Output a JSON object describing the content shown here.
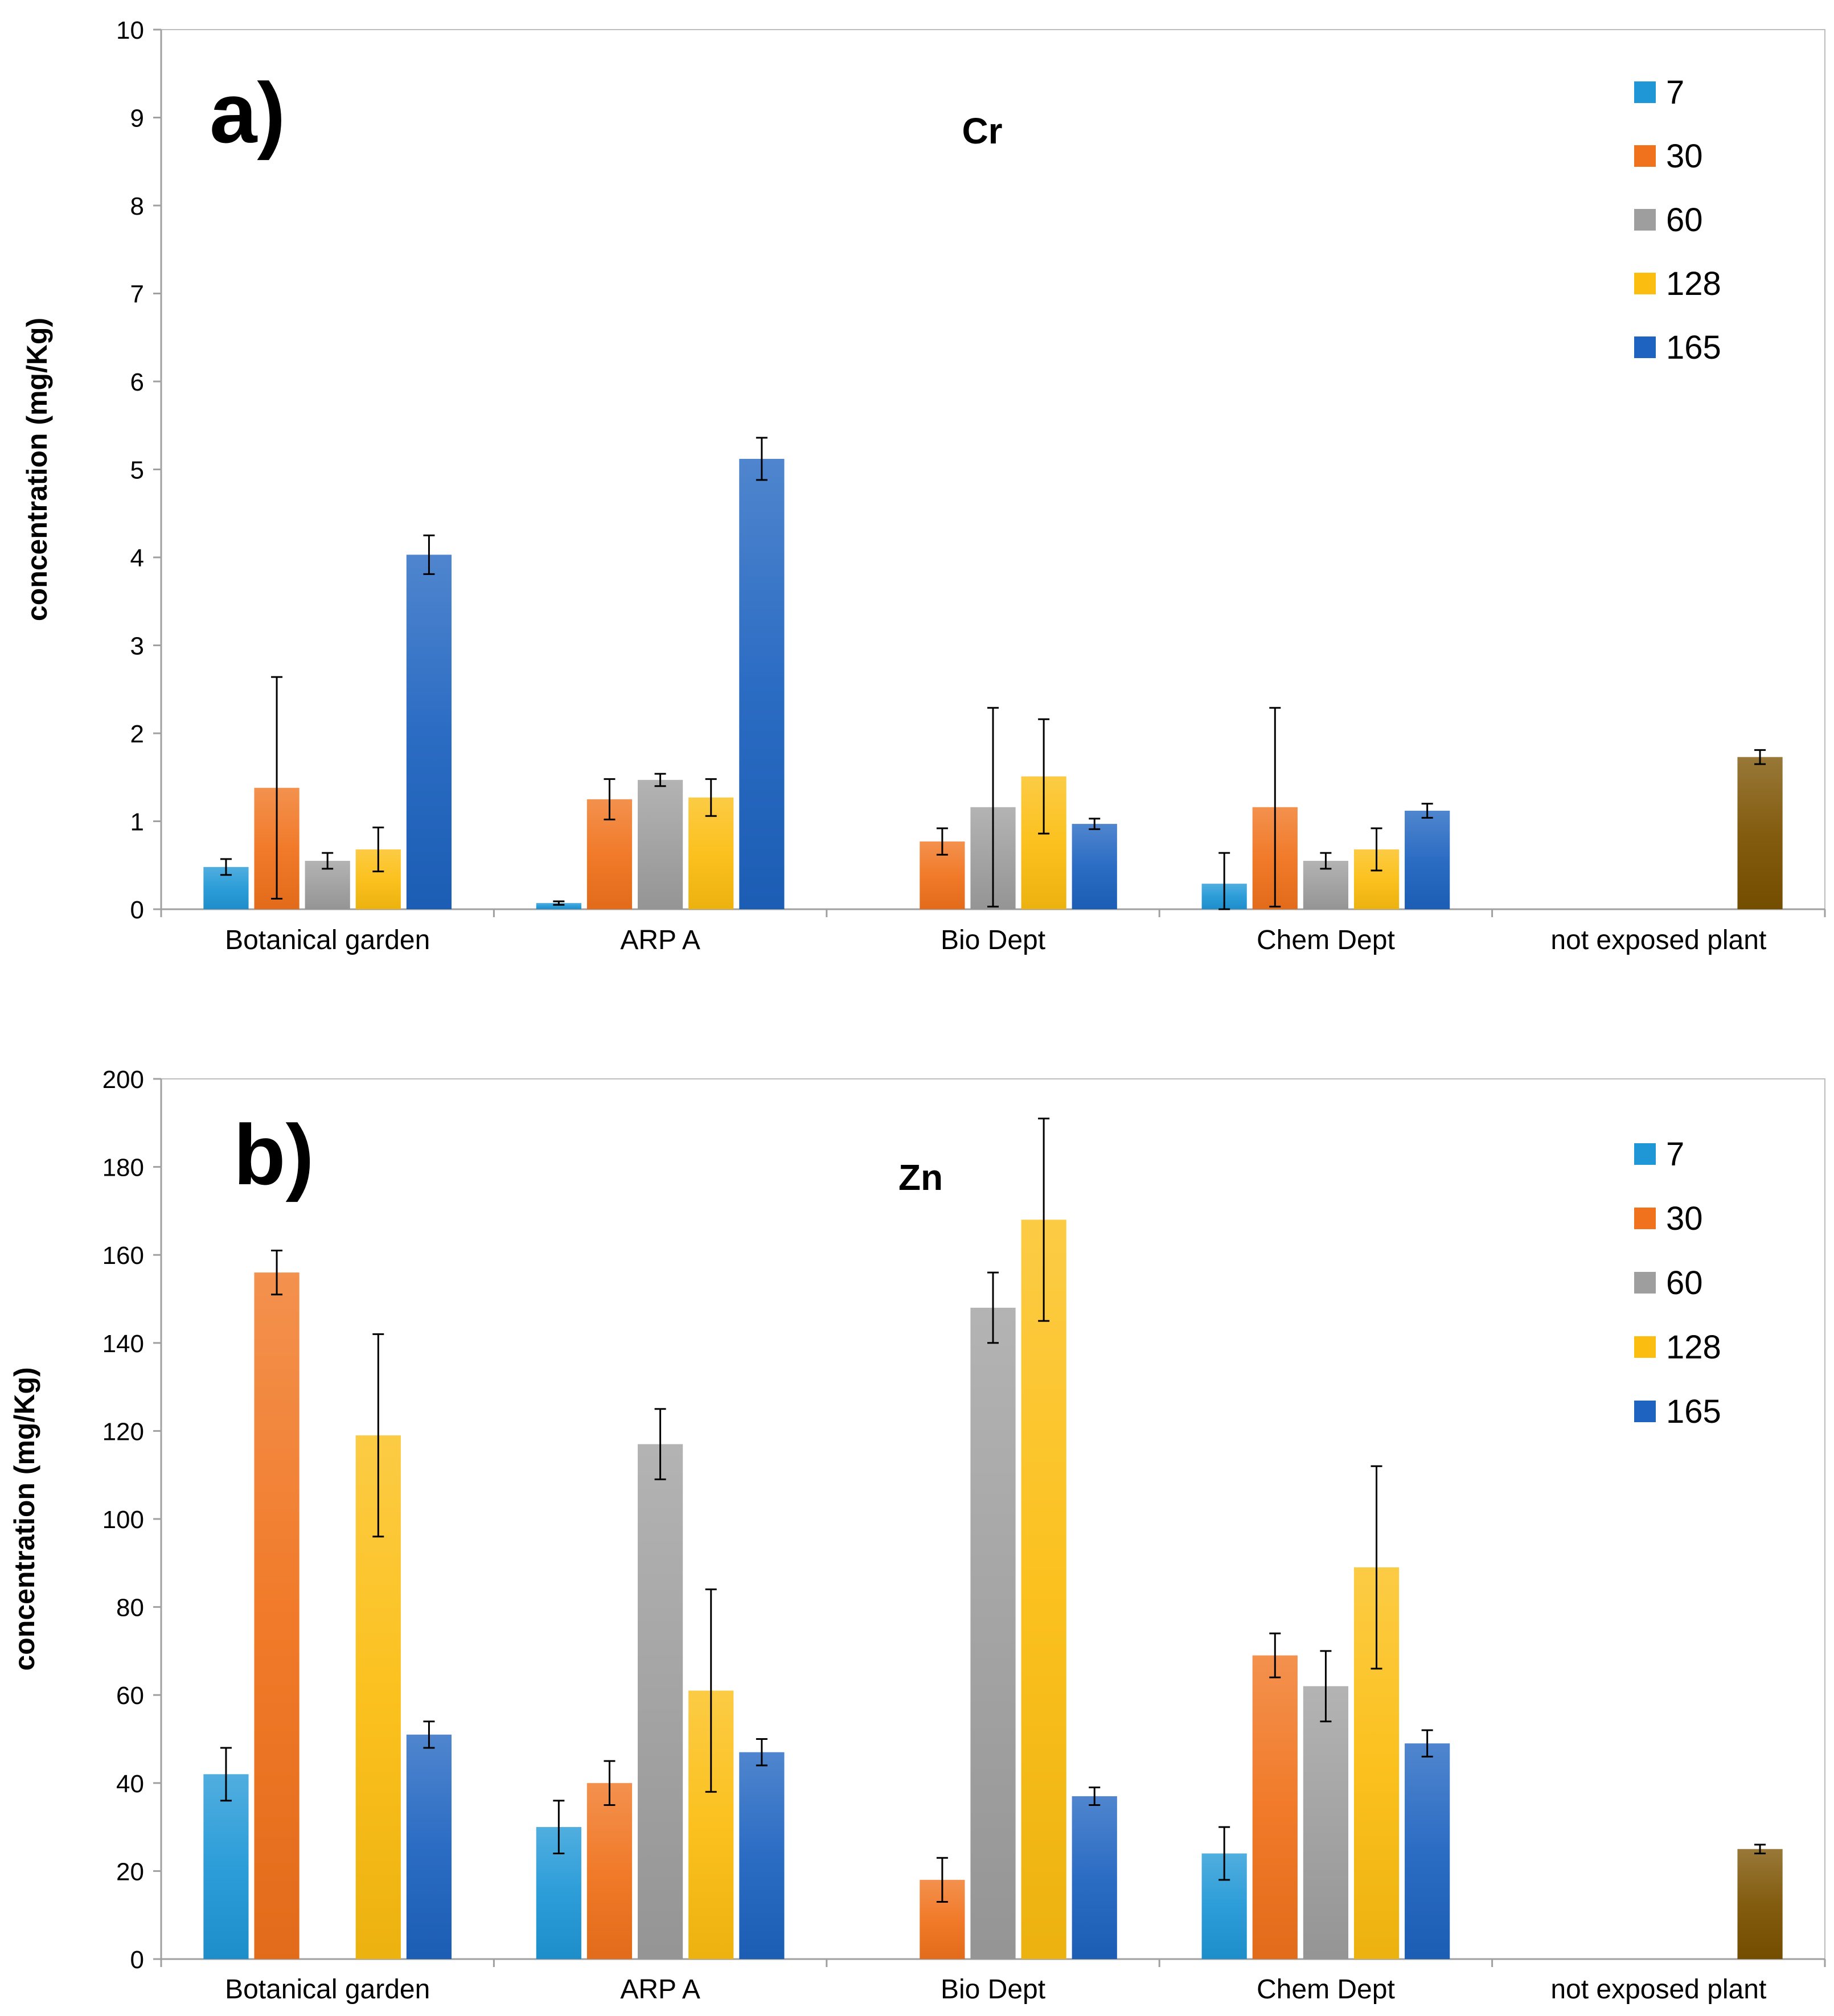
{
  "chart_data": [
    {
      "type": "bar",
      "panel_label": "a)",
      "title": "Cr",
      "xlabel": "",
      "ylabel": "concentration (mg/Kg)",
      "ylim": [
        0,
        10
      ],
      "yticks": [
        0,
        1,
        2,
        3,
        4,
        5,
        6,
        7,
        8,
        9,
        10
      ],
      "categories": [
        "Botanical garden",
        "ARP A",
        "Bio Dept",
        "Chem Dept",
        "not exposed plant"
      ],
      "legend_position": "top-right",
      "series": [
        {
          "name": "7",
          "color": "#1f97d6",
          "values": [
            0.48,
            0.07,
            null,
            0.29,
            null
          ],
          "errors": [
            0.09,
            0.02,
            null,
            0.35,
            null
          ]
        },
        {
          "name": "30",
          "color": "#f0721c",
          "values": [
            1.38,
            1.25,
            0.77,
            1.16,
            null
          ],
          "errors": [
            1.26,
            0.23,
            0.15,
            1.13,
            null
          ]
        },
        {
          "name": "60",
          "color": "#9e9e9e",
          "values": [
            0.55,
            1.47,
            1.16,
            0.55,
            null
          ],
          "errors": [
            0.09,
            0.07,
            1.13,
            0.09,
            null
          ]
        },
        {
          "name": "128",
          "color": "#fbbd10",
          "values": [
            0.68,
            1.27,
            1.51,
            0.68,
            null
          ],
          "errors": [
            0.25,
            0.21,
            0.65,
            0.24,
            null
          ]
        },
        {
          "name": "165",
          "color": "#1e63c0",
          "values": [
            4.03,
            5.12,
            0.97,
            1.12,
            null
          ],
          "errors": [
            0.22,
            0.24,
            0.06,
            0.08,
            null
          ]
        },
        {
          "name": "not exposed plant",
          "color": "#7b5200",
          "values": [
            null,
            null,
            null,
            null,
            1.73
          ],
          "errors": [
            null,
            null,
            null,
            null,
            0.08
          ]
        }
      ]
    },
    {
      "type": "bar",
      "panel_label": "b)",
      "title": "Zn",
      "xlabel": "",
      "ylabel": "concentration (mg/Kg)",
      "ylim": [
        0,
        200
      ],
      "yticks": [
        0,
        20,
        40,
        60,
        80,
        100,
        120,
        140,
        160,
        180,
        200
      ],
      "categories": [
        "Botanical garden",
        "ARP A",
        "Bio Dept",
        "Chem Dept",
        "not exposed plant"
      ],
      "legend_position": "top-right",
      "series": [
        {
          "name": "7",
          "color": "#1f97d6",
          "values": [
            42,
            30,
            null,
            24,
            null
          ],
          "errors": [
            6,
            6,
            null,
            6,
            null
          ]
        },
        {
          "name": "30",
          "color": "#f0721c",
          "values": [
            156,
            40,
            18,
            69,
            null
          ],
          "errors": [
            5,
            5,
            5,
            5,
            null
          ]
        },
        {
          "name": "60",
          "color": "#9e9e9e",
          "values": [
            null,
            117,
            148,
            62,
            null
          ],
          "errors": [
            null,
            8,
            8,
            8,
            null
          ]
        },
        {
          "name": "128",
          "color": "#fbbd10",
          "values": [
            119,
            61,
            168,
            89,
            null
          ],
          "errors": [
            23,
            23,
            23,
            23,
            null
          ]
        },
        {
          "name": "165",
          "color": "#1e63c0",
          "values": [
            51,
            47,
            37,
            49,
            null
          ],
          "errors": [
            3,
            3,
            2,
            3,
            null
          ]
        },
        {
          "name": "not exposed plant",
          "color": "#7b5200",
          "values": [
            null,
            null,
            null,
            null,
            25
          ],
          "errors": [
            null,
            null,
            null,
            null,
            1
          ]
        }
      ]
    }
  ]
}
